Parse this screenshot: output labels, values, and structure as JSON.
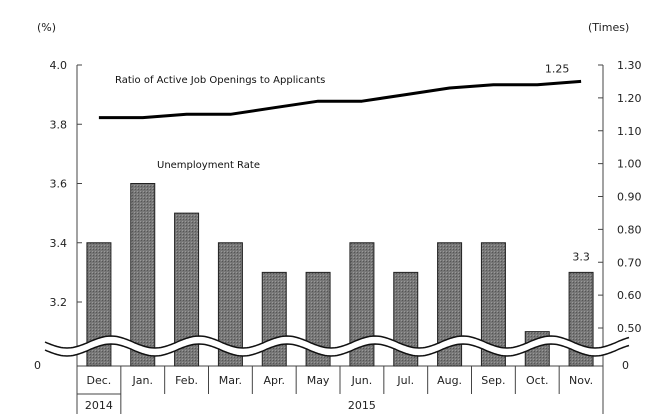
{
  "chart_data": {
    "type": "bar",
    "categories": [
      "Dec.",
      "Jan.",
      "Feb.",
      "Mar.",
      "Apr.",
      "May",
      "Jun.",
      "Jul.",
      "Aug.",
      "Sep.",
      "Oct.",
      "Nov."
    ],
    "years": [
      {
        "label": "2014",
        "start": 0,
        "end": 0
      },
      {
        "label": "2015",
        "start": 1,
        "end": 11
      }
    ],
    "series": [
      {
        "name": "Unemployment Rate",
        "type": "bar",
        "axis": "left",
        "values": [
          3.4,
          3.6,
          3.5,
          3.4,
          3.3,
          3.3,
          3.4,
          3.3,
          3.4,
          3.4,
          3.1,
          3.3
        ],
        "color": "#777777",
        "end_label": "3.3"
      },
      {
        "name": "Ratio of Active Job Openings to Applicants",
        "type": "line",
        "axis": "right",
        "values": [
          1.14,
          1.14,
          1.15,
          1.15,
          1.17,
          1.19,
          1.19,
          1.21,
          1.23,
          1.24,
          1.24,
          1.25
        ],
        "color": "#000000",
        "end_label": "1.25"
      }
    ],
    "left_axis": {
      "unit": "(%)",
      "range": [
        3.0,
        4.0
      ],
      "ticks": [
        "4.0",
        "3.8",
        "3.6",
        "3.4",
        "3.2"
      ],
      "tick_values": [
        4.0,
        3.8,
        3.6,
        3.4,
        3.2
      ],
      "zero_label": "0"
    },
    "right_axis": {
      "unit": "(Times)",
      "range": [
        0.4,
        1.3
      ],
      "ticks": [
        "1.30",
        "1.20",
        "1.10",
        "1.00",
        "0.90",
        "0.80",
        "0.70",
        "0.60",
        "0.50"
      ],
      "tick_values": [
        1.3,
        1.2,
        1.1,
        1.0,
        0.9,
        0.8,
        0.7,
        0.6,
        0.5
      ],
      "zero_label": "0"
    },
    "axis_break": true,
    "grid": false,
    "legend": "none"
  }
}
